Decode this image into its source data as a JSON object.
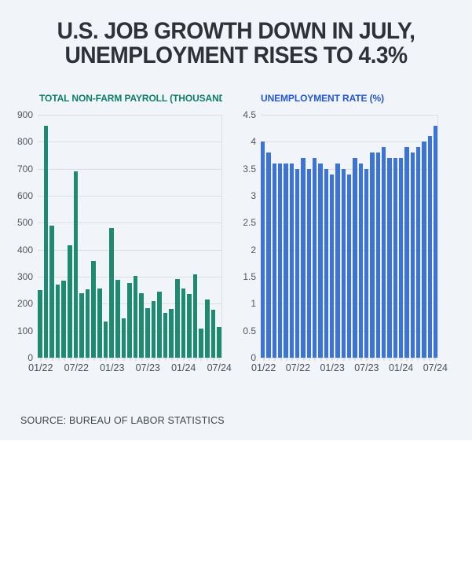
{
  "title": {
    "line1": "U.S. JOB GROWTH DOWN IN JULY,",
    "line2": "UNEMPLOYMENT RISES TO 4.3%"
  },
  "source_note": "SOURCE: BUREAU OF LABOR STATISTICS",
  "colors": {
    "background": "#f1f5f9",
    "headline_text": "#2e3138",
    "gridline": "#dbe0e6",
    "axis_label": "#51565e",
    "payroll_bar": "#1e8a6f",
    "payroll_title": "#0e7e66",
    "unemployment_bar": "#3b73d9",
    "unemployment_title": "#2457d6"
  },
  "chart_data": [
    {
      "type": "bar",
      "title": "TOTAL NON-FARM PAYROLL (THOUSANDS)",
      "title_color": "#0e7e66",
      "bar_color": "#1e8a6f",
      "ylim": [
        0,
        900
      ],
      "grid": true,
      "legend": "none",
      "yticks": [
        {
          "label": "900",
          "v": 900
        },
        {
          "label": "800",
          "v": 800
        },
        {
          "label": "700",
          "v": 700
        },
        {
          "label": "600",
          "v": 600
        },
        {
          "label": "500",
          "v": 500
        },
        {
          "label": "400",
          "v": 400
        },
        {
          "label": "300",
          "v": 300
        },
        {
          "label": "200",
          "v": 200
        },
        {
          "label": "100",
          "v": 100
        },
        {
          "label": "0",
          "v": 0
        }
      ],
      "categories": [
        "01/22",
        "02/22",
        "03/22",
        "04/22",
        "05/22",
        "06/22",
        "07/22",
        "08/22",
        "09/22",
        "10/22",
        "11/22",
        "12/22",
        "01/23",
        "02/23",
        "03/23",
        "04/23",
        "05/23",
        "06/23",
        "07/23",
        "08/23",
        "09/23",
        "10/23",
        "11/23",
        "12/23",
        "01/24",
        "02/24",
        "03/24",
        "04/24",
        "05/24",
        "06/24",
        "07/24"
      ],
      "values": [
        250,
        860,
        490,
        272,
        285,
        418,
        690,
        240,
        252,
        357,
        255,
        133,
        482,
        287,
        146,
        278,
        303,
        240,
        184,
        210,
        246,
        165,
        182,
        290,
        256,
        236,
        310,
        108,
        216,
        179,
        114
      ],
      "xticks": [
        {
          "label": "01/22",
          "index": 0
        },
        {
          "label": "07/22",
          "index": 6
        },
        {
          "label": "01/23",
          "index": 12
        },
        {
          "label": "07/23",
          "index": 18
        },
        {
          "label": "01/24",
          "index": 24
        },
        {
          "label": "07/24",
          "index": 30
        }
      ]
    },
    {
      "type": "bar",
      "title": "UNEMPLOYMENT RATE (%)",
      "title_color": "#2457d6",
      "bar_color": "#3b73d9",
      "ylim": [
        0,
        4.5
      ],
      "grid": true,
      "legend": "none",
      "yticks": [
        {
          "label": "4.5",
          "v": 4.5
        },
        {
          "label": "4",
          "v": 4
        },
        {
          "label": "3.5",
          "v": 3.5
        },
        {
          "label": "3",
          "v": 3
        },
        {
          "label": "2.5",
          "v": 2.5
        },
        {
          "label": "2",
          "v": 2
        },
        {
          "label": "1.5",
          "v": 1.5
        },
        {
          "label": "1",
          "v": 1
        },
        {
          "label": "0.5",
          "v": 0.5
        },
        {
          "label": "0",
          "v": 0
        }
      ],
      "categories": [
        "01/22",
        "02/22",
        "03/22",
        "04/22",
        "05/22",
        "06/22",
        "07/22",
        "08/22",
        "09/22",
        "10/22",
        "11/22",
        "12/22",
        "01/23",
        "02/23",
        "03/23",
        "04/23",
        "05/23",
        "06/23",
        "07/23",
        "08/23",
        "09/23",
        "10/23",
        "11/23",
        "12/23",
        "01/24",
        "02/24",
        "03/24",
        "04/24",
        "05/24",
        "06/24",
        "07/24"
      ],
      "values": [
        4.0,
        3.8,
        3.6,
        3.6,
        3.6,
        3.6,
        3.5,
        3.7,
        3.5,
        3.7,
        3.6,
        3.5,
        3.4,
        3.6,
        3.5,
        3.4,
        3.7,
        3.6,
        3.5,
        3.8,
        3.8,
        3.9,
        3.7,
        3.7,
        3.7,
        3.9,
        3.8,
        3.9,
        4.0,
        4.1,
        4.3
      ],
      "xticks": [
        {
          "label": "01/22",
          "index": 0
        },
        {
          "label": "07/22",
          "index": 6
        },
        {
          "label": "01/23",
          "index": 12
        },
        {
          "label": "07/23",
          "index": 18
        },
        {
          "label": "01/24",
          "index": 24
        },
        {
          "label": "07/24",
          "index": 30
        }
      ]
    }
  ]
}
